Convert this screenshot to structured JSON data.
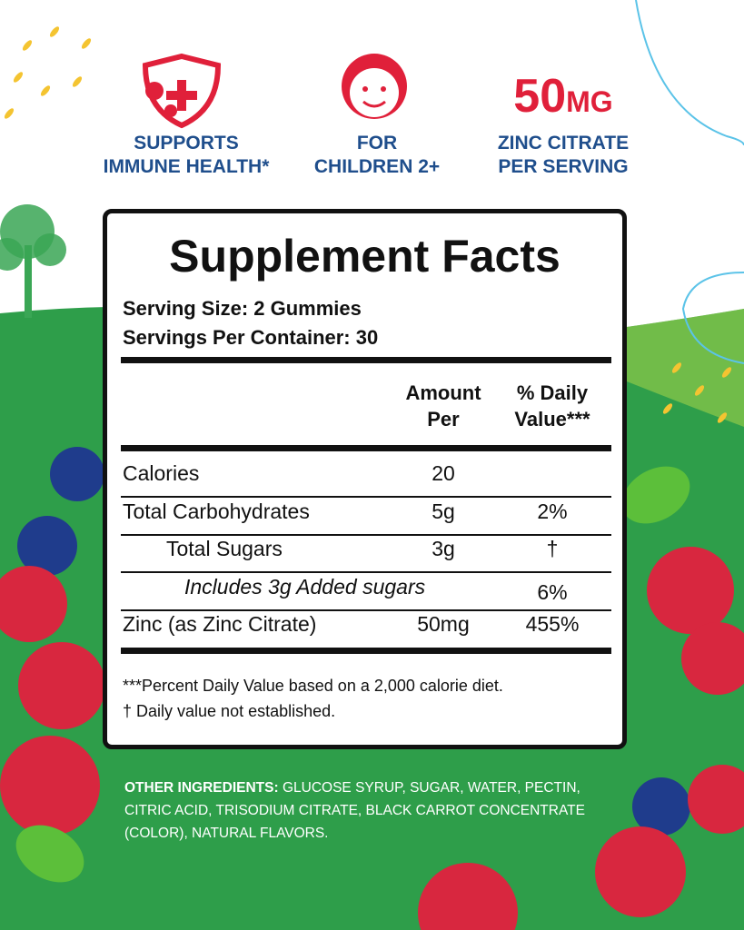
{
  "badges": [
    {
      "lines": [
        "SUPPORTS",
        "IMMUNE HEALTH*"
      ]
    },
    {
      "lines": [
        "FOR",
        "CHILDREN 2+"
      ]
    },
    {
      "amount": "50",
      "unit": "MG",
      "lines": [
        "ZINC CITRATE",
        "PER SERVING"
      ]
    }
  ],
  "facts": {
    "title": "Supplement Facts",
    "serving_size": "Serving Size: 2 Gummies",
    "servings_per_container": "Servings Per Container: 30",
    "header": {
      "amount": [
        "Amount",
        "Per"
      ],
      "daily_value": [
        "% Daily",
        "Value***"
      ]
    },
    "rows": [
      [
        "Calories",
        "20",
        null
      ],
      [
        "Total Carbohydrates",
        "5g",
        "2%"
      ],
      [
        "Total Sugars",
        "3g",
        "†"
      ],
      [
        "Includes 3g Added sugars",
        null,
        "6%"
      ],
      [
        "Zinc (as Zinc Citrate)",
        "50mg",
        "455%"
      ]
    ],
    "footnotes": [
      "***Percent Daily Value based on a 2,000 calorie diet.",
      "† Daily value not established."
    ]
  },
  "other_ingredients": {
    "label": "OTHER INGREDIENTS:",
    "text": "GLUCOSE SYRUP, SUGAR, WATER, PECTIN, CITRIC ACID, TRISODIUM CITRATE, BLACK CARROT CONCENTRATE (COLOR), NATURAL FLAVORS."
  }
}
